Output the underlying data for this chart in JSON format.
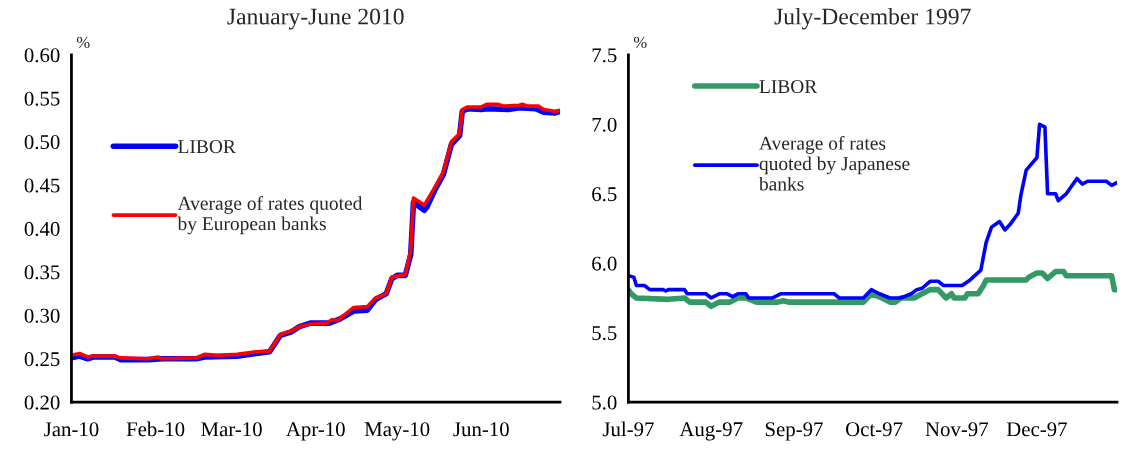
{
  "chart_data": [
    {
      "type": "line",
      "title": "January-June 2010",
      "ylabel": "%",
      "xlim": [
        "2010-01-01",
        "2010-06-30"
      ],
      "ylim": [
        0.2,
        0.6
      ],
      "xticks": [
        {
          "value": "2010-01-01",
          "label": "Jan-10"
        },
        {
          "value": "2010-02-01",
          "label": "Feb-10"
        },
        {
          "value": "2010-03-01",
          "label": "Mar-10"
        },
        {
          "value": "2010-04-01",
          "label": "Apr-10"
        },
        {
          "value": "2010-05-01",
          "label": "May-10"
        },
        {
          "value": "2010-06-01",
          "label": "Jun-10"
        }
      ],
      "yticks": [
        {
          "value": 0.2,
          "label": "0.20"
        },
        {
          "value": 0.25,
          "label": "0.25"
        },
        {
          "value": 0.3,
          "label": "0.30"
        },
        {
          "value": 0.35,
          "label": "0.35"
        },
        {
          "value": 0.4,
          "label": "0.40"
        },
        {
          "value": 0.45,
          "label": "0.45"
        },
        {
          "value": 0.5,
          "label": "0.50"
        },
        {
          "value": 0.55,
          "label": "0.55"
        },
        {
          "value": 0.6,
          "label": "0.60"
        }
      ],
      "legend": "left",
      "grid": false,
      "marker": "none",
      "line_style": "solid",
      "series": [
        {
          "name": "LIBOR",
          "color": "#0000ff",
          "x": [
            "2010-01-01",
            "2010-01-04",
            "2010-01-07",
            "2010-01-09",
            "2010-01-17",
            "2010-01-19",
            "2010-01-29",
            "2010-02-04",
            "2010-02-16",
            "2010-02-19",
            "2010-03-03",
            "2010-03-10",
            "2010-03-15",
            "2010-03-19",
            "2010-03-23",
            "2010-03-26",
            "2010-03-30",
            "2010-04-06",
            "2010-04-10",
            "2010-04-15",
            "2010-04-20",
            "2010-04-23",
            "2010-04-27",
            "2010-04-29",
            "2010-05-01",
            "2010-05-04",
            "2010-05-06",
            "2010-05-07",
            "2010-05-11",
            "2010-05-12",
            "2010-05-15",
            "2010-05-18",
            "2010-05-21",
            "2010-05-24",
            "2010-05-25",
            "2010-05-27",
            "2010-06-01",
            "2010-06-03",
            "2010-06-11",
            "2010-06-15",
            "2010-06-21",
            "2010-06-24",
            "2010-06-28",
            "2010-06-30"
          ],
          "values": [
            0.251,
            0.253,
            0.25,
            0.252,
            0.252,
            0.249,
            0.249,
            0.25,
            0.25,
            0.252,
            0.253,
            0.256,
            0.258,
            0.277,
            0.281,
            0.287,
            0.291,
            0.291,
            0.296,
            0.305,
            0.306,
            0.318,
            0.325,
            0.342,
            0.346,
            0.346,
            0.37,
            0.43,
            0.421,
            0.425,
            0.445,
            0.462,
            0.497,
            0.507,
            0.535,
            0.538,
            0.537,
            0.538,
            0.537,
            0.539,
            0.538,
            0.534,
            0.533,
            0.535
          ]
        },
        {
          "name": "Average of rates quoted\nby European banks",
          "color": "#ff0000",
          "x": [
            "2010-01-01",
            "2010-01-04",
            "2010-01-07",
            "2010-01-09",
            "2010-01-17",
            "2010-01-19",
            "2010-01-29",
            "2010-02-02",
            "2010-02-03",
            "2010-02-16",
            "2010-02-19",
            "2010-02-24",
            "2010-03-03",
            "2010-03-10",
            "2010-03-15",
            "2010-03-19",
            "2010-03-23",
            "2010-03-26",
            "2010-03-30",
            "2010-04-05",
            "2010-04-07",
            "2010-04-09",
            "2010-04-15",
            "2010-04-20",
            "2010-04-23",
            "2010-04-27",
            "2010-04-29",
            "2010-05-04",
            "2010-05-06",
            "2010-05-07",
            "2010-05-11",
            "2010-05-15",
            "2010-05-18",
            "2010-05-21",
            "2010-05-24",
            "2010-05-25",
            "2010-05-27",
            "2010-06-01",
            "2010-06-03",
            "2010-06-07",
            "2010-06-09",
            "2010-06-15",
            "2010-06-16",
            "2010-06-18",
            "2010-06-22",
            "2010-06-24",
            "2010-06-28",
            "2010-06-30"
          ],
          "values": [
            0.254,
            0.256,
            0.252,
            0.253,
            0.253,
            0.251,
            0.25,
            0.252,
            0.25,
            0.251,
            0.255,
            0.254,
            0.255,
            0.258,
            0.259,
            0.278,
            0.282,
            0.287,
            0.29,
            0.291,
            0.295,
            0.294,
            0.309,
            0.31,
            0.32,
            0.325,
            0.344,
            0.347,
            0.375,
            0.435,
            0.427,
            0.448,
            0.465,
            0.5,
            0.509,
            0.537,
            0.54,
            0.54,
            0.543,
            0.543,
            0.541,
            0.542,
            0.543,
            0.541,
            0.541,
            0.537,
            0.535,
            0.536
          ]
        }
      ]
    },
    {
      "type": "line",
      "title": "July-December 1997",
      "ylabel": "%",
      "xlim": [
        "1997-07-01",
        "1997-12-31"
      ],
      "ylim": [
        5.0,
        7.5
      ],
      "xticks": [
        {
          "value": "1997-07-01",
          "label": "Jul-97"
        },
        {
          "value": "1997-08-01",
          "label": "Aug-97"
        },
        {
          "value": "1997-09-01",
          "label": "Sep-97"
        },
        {
          "value": "1997-10-01",
          "label": "Oct-97"
        },
        {
          "value": "1997-11-01",
          "label": "Nov-97"
        },
        {
          "value": "1997-12-01",
          "label": "Dec-97"
        }
      ],
      "yticks": [
        {
          "value": 5.0,
          "label": "5.0"
        },
        5.5,
        {
          "value": 6.0,
          "label": "6.0"
        },
        6.5,
        {
          "value": 7.0,
          "label": "7.0"
        },
        7.5
      ],
      "legend": "top left",
      "grid": false,
      "marker": "none",
      "line_style": "solid",
      "series": [
        {
          "name": "LIBOR",
          "color": "#339966",
          "x": [
            "1997-07-01",
            "1997-07-02",
            "1997-07-04",
            "1997-07-16",
            "1997-07-22",
            "1997-07-24",
            "1997-07-30",
            "1997-08-01",
            "1997-08-04",
            "1997-08-08",
            "1997-08-11",
            "1997-08-14",
            "1997-08-18",
            "1997-08-26",
            "1997-08-28",
            "1997-08-30",
            "1997-09-27",
            "1997-09-30",
            "1997-10-04",
            "1997-10-07",
            "1997-10-09",
            "1997-10-11",
            "1997-10-16",
            "1997-10-19",
            "1997-10-22",
            "1997-10-25",
            "1997-10-28",
            "1997-10-30",
            "1997-10-31",
            "1997-11-04",
            "1997-11-05",
            "1997-11-09",
            "1997-11-11",
            "1997-11-12",
            "1997-11-27",
            "1997-11-28",
            "1997-12-01",
            "1997-12-03",
            "1997-12-05",
            "1997-12-08",
            "1997-12-11",
            "1997-12-12",
            "1997-12-29",
            "1997-12-30",
            "1997-12-31"
          ],
          "values": [
            5.81,
            5.78,
            5.75,
            5.74,
            5.75,
            5.72,
            5.72,
            5.69,
            5.72,
            5.72,
            5.75,
            5.75,
            5.72,
            5.72,
            5.73,
            5.72,
            5.72,
            5.78,
            5.75,
            5.72,
            5.72,
            5.75,
            5.75,
            5.78,
            5.81,
            5.81,
            5.75,
            5.78,
            5.75,
            5.75,
            5.78,
            5.78,
            5.84,
            5.88,
            5.88,
            5.9,
            5.93,
            5.93,
            5.89,
            5.94,
            5.94,
            5.91,
            5.91,
            5.81,
            5.81
          ]
        },
        {
          "name": "Average of rates\nquoted by Japanese\nbanks",
          "color": "#0000ff",
          "x": [
            "1997-07-01",
            "1997-07-03",
            "1997-07-04",
            "1997-07-07",
            "1997-07-09",
            "1997-07-14",
            "1997-07-15",
            "1997-07-16",
            "1997-07-22",
            "1997-07-23",
            "1997-07-30",
            "1997-08-01",
            "1997-08-04",
            "1997-08-07",
            "1997-08-09",
            "1997-08-11",
            "1997-08-14",
            "1997-08-15",
            "1997-08-24",
            "1997-08-27",
            "1997-09-16",
            "1997-09-18",
            "1997-09-27",
            "1997-09-30",
            "1997-10-01",
            "1997-10-03",
            "1997-10-07",
            "1997-10-11",
            "1997-10-15",
            "1997-10-17",
            "1997-10-19",
            "1997-10-22",
            "1997-10-25",
            "1997-10-27",
            "1997-11-03",
            "1997-11-06",
            "1997-11-10",
            "1997-11-12",
            "1997-11-14",
            "1997-11-17",
            "1997-11-19",
            "1997-11-21",
            "1997-11-24",
            "1997-11-25",
            "1997-11-27",
            "1997-12-01",
            "1997-12-02",
            "1997-12-04",
            "1997-12-05",
            "1997-12-08",
            "1997-12-09",
            "1997-12-12",
            "1997-12-16",
            "1997-12-18",
            "1997-12-20",
            "1997-12-27",
            "1997-12-29",
            "1997-12-31"
          ],
          "values": [
            5.91,
            5.9,
            5.84,
            5.84,
            5.81,
            5.81,
            5.8,
            5.81,
            5.81,
            5.78,
            5.78,
            5.75,
            5.78,
            5.78,
            5.76,
            5.78,
            5.78,
            5.75,
            5.75,
            5.78,
            5.78,
            5.75,
            5.75,
            5.81,
            5.8,
            5.78,
            5.75,
            5.75,
            5.78,
            5.81,
            5.82,
            5.87,
            5.87,
            5.84,
            5.84,
            5.88,
            5.95,
            6.15,
            6.26,
            6.3,
            6.24,
            6.28,
            6.36,
            6.49,
            6.67,
            6.76,
            7.0,
            6.98,
            6.5,
            6.5,
            6.45,
            6.5,
            6.61,
            6.57,
            6.59,
            6.59,
            6.56,
            6.58
          ]
        }
      ]
    }
  ]
}
